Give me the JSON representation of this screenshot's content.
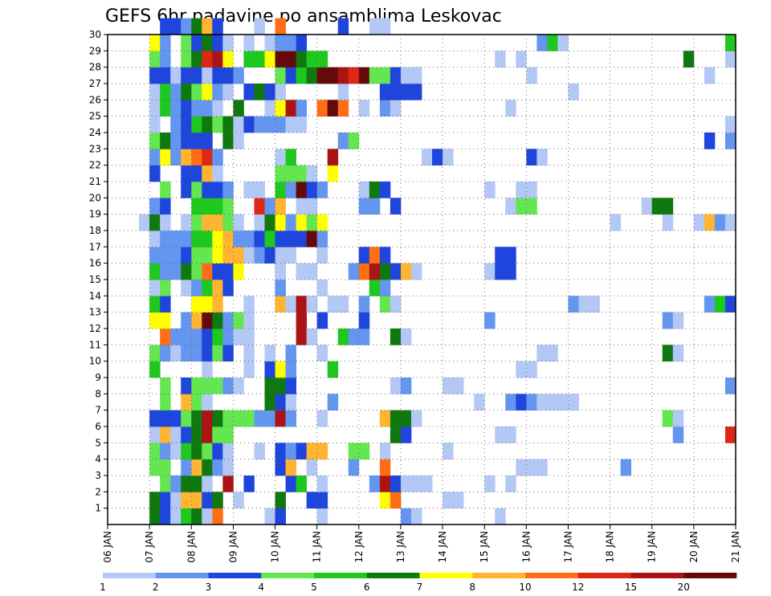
{
  "chart_data": {
    "type": "heatmap",
    "title": "GEFS 6hr padavine po ansamblima Leskovac",
    "xlabel": "",
    "ylabel": "",
    "x_tick_labels": [
      "06 JAN",
      "07 JAN",
      "08 JAN",
      "09 JAN",
      "10 JAN",
      "11 JAN",
      "12 JAN",
      "13 JAN",
      "14 JAN",
      "15 JAN",
      "16 JAN",
      "17 JAN",
      "18 JAN",
      "19 JAN",
      "20 JAN",
      "21 JAN"
    ],
    "y_tick_labels": [
      "1",
      "2",
      "3",
      "4",
      "5",
      "6",
      "7",
      "8",
      "9",
      "10",
      "11",
      "12",
      "13",
      "14",
      "15",
      "16",
      "17",
      "18",
      "19",
      "20",
      "21",
      "22",
      "23",
      "24",
      "25",
      "26",
      "27",
      "28",
      "29",
      "30"
    ],
    "x_time_steps": 60,
    "members": 30,
    "grid": true,
    "legend_position": "bottom",
    "legend": {
      "labels": [
        "1",
        "2",
        "3",
        "4",
        "5",
        "6",
        "7",
        "8",
        "10",
        "12",
        "15",
        "20"
      ],
      "colors": [
        "#b4c8f5",
        "#6496f0",
        "#1e46dc",
        "#64e650",
        "#1ec81e",
        "#0f780f",
        "#ffff00",
        "#ffb432",
        "#ff6e14",
        "#dc2814",
        "#aa1414",
        "#640a0a"
      ]
    },
    "values": {
      "30": {
        "5": 3,
        "6": 3,
        "7": 2,
        "8": 6,
        "9": 8,
        "10": 3,
        "14": 1,
        "16": 9,
        "22": 3,
        "25": 1,
        "26": 1
      },
      "29": {
        "4": 7,
        "5": 2,
        "7": 4,
        "8": 3,
        "9": 6,
        "10": 3,
        "11": 1,
        "13": 1,
        "15": 1,
        "16": 2,
        "17": 2,
        "18": 3,
        "41": 2,
        "42": 5,
        "43": 1,
        "59": 5
      },
      "28": {
        "4": 4,
        "5": 2,
        "7": 4,
        "8": 6,
        "9": 10,
        "10": 11,
        "11": 7,
        "13": 5,
        "14": 5,
        "15": 7,
        "16": 12,
        "17": 12,
        "18": 6,
        "19": 5,
        "20": 5,
        "37": 1,
        "39": 1,
        "55": 6,
        "59": 1
      },
      "27": {
        "4": 3,
        "5": 3,
        "6": 1,
        "7": 3,
        "8": 3,
        "9": 1,
        "10": 3,
        "11": 3,
        "12": 2,
        "16": 4,
        "17": 3,
        "18": 5,
        "19": 6,
        "20": 12,
        "21": 12,
        "22": 11,
        "23": 10,
        "24": 12,
        "25": 4,
        "26": 4,
        "27": 3,
        "28": 1,
        "29": 1,
        "40": 1,
        "57": 1
      },
      "26": {
        "4": 1,
        "5": 5,
        "6": 2,
        "7": 6,
        "8": 4,
        "9": 7,
        "10": 2,
        "11": 1,
        "13": 3,
        "14": 6,
        "15": 3,
        "16": 1,
        "22": 1,
        "26": 3,
        "27": 3,
        "28": 3,
        "29": 3,
        "44": 1
      },
      "25": {
        "4": 1,
        "5": 5,
        "6": 2,
        "7": 3,
        "8": 2,
        "9": 2,
        "10": 1,
        "12": 6,
        "15": 1,
        "16": 7,
        "17": 11,
        "18": 2,
        "20": 9,
        "21": 12,
        "22": 9,
        "24": 1,
        "26": 2,
        "27": 1,
        "38": 1
      },
      "24": {
        "4": 1,
        "6": 2,
        "7": 3,
        "8": 5,
        "9": 6,
        "10": 4,
        "11": 6,
        "12": 1,
        "13": 3,
        "14": 2,
        "15": 2,
        "16": 2,
        "17": 1,
        "18": 1,
        "59": 1
      },
      "23": {
        "4": 4,
        "5": 6,
        "6": 2,
        "7": 3,
        "8": 3,
        "9": 3,
        "11": 6,
        "12": 1,
        "22": 2,
        "23": 4,
        "57": 3,
        "59": 2
      },
      "22": {
        "4": 2,
        "5": 7,
        "6": 2,
        "7": 8,
        "8": 9,
        "9": 10,
        "10": 2,
        "16": 1,
        "17": 5,
        "21": 11,
        "30": 1,
        "31": 3,
        "32": 1,
        "40": 3,
        "41": 1
      },
      "21": {
        "4": 3,
        "7": 3,
        "8": 3,
        "9": 8,
        "10": 1,
        "16": 4,
        "17": 4,
        "18": 4,
        "19": 1,
        "21": 7
      },
      "20": {
        "5": 4,
        "7": 3,
        "8": 4,
        "9": 3,
        "10": 3,
        "11": 2,
        "13": 1,
        "14": 1,
        "16": 5,
        "17": 2,
        "18": 12,
        "19": 3,
        "20": 2,
        "24": 1,
        "25": 6,
        "26": 3,
        "36": 1,
        "39": 1,
        "40": 1
      },
      "19": {
        "4": 2,
        "5": 3,
        "8": 5,
        "9": 5,
        "10": 5,
        "11": 4,
        "14": 10,
        "15": 2,
        "16": 8,
        "18": 1,
        "19": 1,
        "24": 2,
        "25": 2,
        "27": 3,
        "38": 1,
        "39": 4,
        "40": 4,
        "51": 1,
        "52": 6,
        "53": 6
      },
      "18": {
        "3": 1,
        "4": 6,
        "5": 1,
        "7": 1,
        "8": 4,
        "9": 8,
        "10": 8,
        "11": 4,
        "12": 1,
        "14": 1,
        "15": 6,
        "16": 7,
        "17": 2,
        "18": 7,
        "19": 4,
        "20": 7,
        "48": 1,
        "53": 1,
        "56": 1,
        "57": 8,
        "58": 2,
        "59": 1
      },
      "17": {
        "4": 1,
        "5": 2,
        "6": 2,
        "7": 2,
        "8": 5,
        "9": 5,
        "10": 7,
        "11": 8,
        "12": 2,
        "13": 2,
        "14": 3,
        "15": 5,
        "16": 3,
        "17": 3,
        "18": 3,
        "19": 12,
        "20": 2
      },
      "16": {
        "4": 2,
        "5": 2,
        "6": 2,
        "7": 3,
        "8": 4,
        "9": 4,
        "10": 7,
        "11": 8,
        "12": 8,
        "13": 1,
        "14": 2,
        "15": 3,
        "16": 1,
        "17": 1,
        "20": 1,
        "24": 3,
        "25": 9,
        "26": 3,
        "37": 3,
        "38": 3
      },
      "15": {
        "4": 5,
        "5": 2,
        "6": 2,
        "7": 6,
        "8": 4,
        "9": 9,
        "10": 3,
        "11": 3,
        "12": 7,
        "16": 1,
        "18": 1,
        "19": 1,
        "23": 2,
        "24": 9,
        "25": 11,
        "26": 6,
        "27": 3,
        "28": 8,
        "29": 1,
        "36": 1,
        "37": 3,
        "38": 3
      },
      "14": {
        "4": 1,
        "5": 4,
        "7": 1,
        "8": 2,
        "9": 5,
        "10": 8,
        "11": 3,
        "16": 2,
        "20": 1,
        "25": 5,
        "26": 2
      },
      "13": {
        "4": 5,
        "5": 3,
        "8": 7,
        "9": 7,
        "10": 8,
        "13": 1,
        "16": 8,
        "17": 1,
        "18": 11,
        "19": 1,
        "21": 1,
        "22": 1,
        "24": 2,
        "26": 4,
        "27": 1,
        "44": 2,
        "45": 1,
        "46": 1,
        "57": 2,
        "58": 5,
        "59": 3
      },
      "12": {
        "4": 7,
        "5": 7,
        "7": 2,
        "8": 8,
        "9": 12,
        "10": 6,
        "11": 2,
        "12": 4,
        "13": 1,
        "18": 11,
        "20": 3,
        "24": 3,
        "36": 2,
        "53": 2,
        "54": 1
      },
      "11": {
        "5": 9,
        "6": 2,
        "7": 2,
        "8": 2,
        "9": 3,
        "10": 5,
        "11": 2,
        "12": 1,
        "13": 1,
        "18": 11,
        "19": 1,
        "22": 5,
        "23": 2,
        "24": 2,
        "27": 6,
        "28": 1
      },
      "10": {
        "4": 4,
        "5": 2,
        "6": 1,
        "7": 2,
        "8": 2,
        "9": 3,
        "10": 4,
        "11": 3,
        "13": 1,
        "15": 1,
        "17": 2,
        "20": 1,
        "41": 1,
        "42": 1,
        "53": 6,
        "54": 1
      },
      "9": {
        "4": 5,
        "9": 1,
        "13": 1,
        "15": 3,
        "16": 7,
        "17": 2,
        "21": 5,
        "39": 1,
        "40": 1
      },
      "8": {
        "5": 4,
        "7": 3,
        "8": 4,
        "9": 4,
        "10": 4,
        "11": 2,
        "12": 1,
        "15": 6,
        "16": 6,
        "17": 3,
        "27": 1,
        "28": 2,
        "32": 1,
        "33": 1,
        "59": 2
      },
      "7": {
        "5": 4,
        "7": 8,
        "8": 4,
        "9": 1,
        "15": 6,
        "16": 3,
        "17": 1,
        "21": 2,
        "35": 1,
        "38": 2,
        "39": 3,
        "40": 2,
        "41": 1,
        "42": 1,
        "43": 1,
        "44": 1
      },
      "6": {
        "4": 3,
        "5": 3,
        "6": 3,
        "7": 4,
        "8": 6,
        "9": 11,
        "10": 6,
        "11": 4,
        "12": 4,
        "13": 4,
        "14": 2,
        "15": 2,
        "16": 11,
        "17": 2,
        "20": 1,
        "26": 8,
        "27": 6,
        "28": 6,
        "29": 1,
        "53": 4,
        "54": 1
      },
      "5": {
        "4": 1,
        "5": 8,
        "6": 1,
        "7": 3,
        "8": 6,
        "9": 11,
        "10": 4,
        "11": 4,
        "27": 6,
        "28": 3,
        "37": 1,
        "38": 1,
        "54": 2,
        "59": 10
      },
      "4": {
        "4": 4,
        "5": 2,
        "6": 1,
        "7": 5,
        "8": 6,
        "9": 4,
        "10": 3,
        "11": 1,
        "14": 1,
        "16": 3,
        "17": 2,
        "18": 3,
        "19": 8,
        "20": 8,
        "23": 4,
        "24": 4,
        "26": 1,
        "32": 1
      },
      "3": {
        "4": 4,
        "5": 4,
        "7": 2,
        "8": 8,
        "9": 6,
        "10": 2,
        "11": 1,
        "16": 3,
        "17": 8,
        "19": 1,
        "23": 2,
        "26": 9,
        "39": 1,
        "40": 1,
        "41": 1,
        "49": 2
      },
      "2": {
        "5": 4,
        "6": 2,
        "7": 6,
        "8": 6,
        "9": 1,
        "11": 11,
        "13": 3,
        "17": 3,
        "18": 5,
        "20": 1,
        "25": 2,
        "26": 11,
        "27": 3,
        "28": 1,
        "29": 1,
        "30": 1,
        "36": 1,
        "38": 1
      },
      "1": {
        "4": 6,
        "5": 3,
        "6": 1,
        "7": 8,
        "8": 8,
        "9": 3,
        "10": 6,
        "12": 1,
        "16": 6,
        "19": 3,
        "20": 3,
        "26": 7,
        "27": 9,
        "32": 1,
        "33": 1
      },
      "0": {
        "4": 6,
        "5": 3,
        "6": 1,
        "7": 5,
        "8": 6,
        "9": 1,
        "10": 9,
        "15": 1,
        "16": 3,
        "20": 1,
        "28": 2,
        "29": 1,
        "37": 1
      }
    }
  }
}
